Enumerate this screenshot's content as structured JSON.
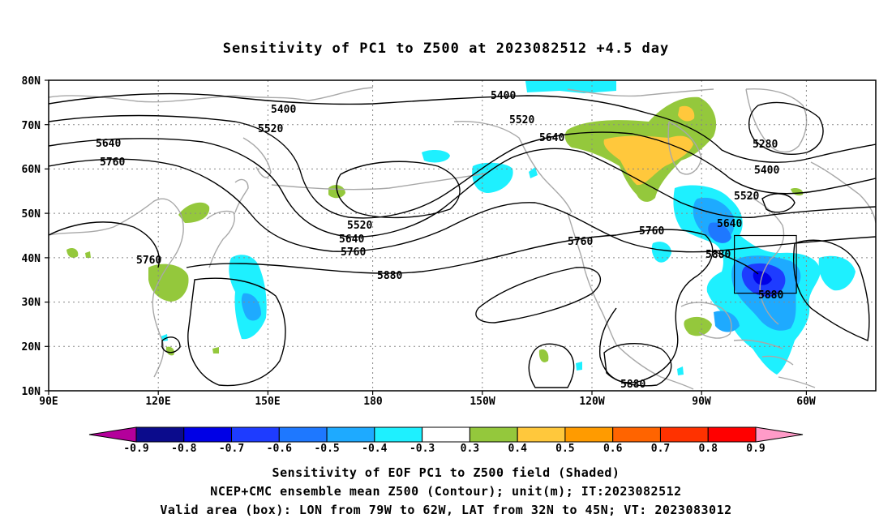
{
  "title": "Sensitivity of PC1 to Z500 at 2023082512 +4.5 day",
  "lat_ticks": [
    "80N",
    "70N",
    "60N",
    "50N",
    "40N",
    "30N",
    "20N",
    "10N"
  ],
  "lon_ticks": [
    "90E",
    "120E",
    "150E",
    "180",
    "150W",
    "120W",
    "90W",
    "60W"
  ],
  "contour_labels": [
    {
      "text": "5400",
      "key": "c1"
    },
    {
      "text": "5400",
      "key": "c2"
    },
    {
      "text": "5520",
      "key": "c3"
    },
    {
      "text": "5520",
      "key": "c4"
    },
    {
      "text": "5640",
      "key": "c5"
    },
    {
      "text": "5640",
      "key": "c6"
    },
    {
      "text": "5760",
      "key": "c7"
    },
    {
      "text": "5280",
      "key": "c8"
    },
    {
      "text": "5400",
      "key": "c9"
    },
    {
      "text": "5520",
      "key": "c10"
    },
    {
      "text": "5520",
      "key": "c11"
    },
    {
      "text": "5640",
      "key": "c12"
    },
    {
      "text": "5760",
      "key": "c13"
    },
    {
      "text": "5760",
      "key": "c14"
    },
    {
      "text": "5640",
      "key": "c15"
    },
    {
      "text": "5760",
      "key": "c16"
    },
    {
      "text": "5880",
      "key": "c17"
    },
    {
      "text": "5760",
      "key": "c18"
    },
    {
      "text": "5880",
      "key": "c19"
    },
    {
      "text": "5880",
      "key": "c20"
    },
    {
      "text": "5880",
      "key": "c21"
    }
  ],
  "colorbar": {
    "labels": [
      "-0.9",
      "-0.8",
      "-0.7",
      "-0.6",
      "-0.5",
      "-0.4",
      "-0.3",
      "0.3",
      "0.4",
      "0.5",
      "0.6",
      "0.7",
      "0.8",
      "0.9"
    ],
    "colors": [
      "#0b0b8c",
      "#0000e6",
      "#1e3cff",
      "#1e78ff",
      "#1eaaff",
      "#1ef0ff",
      "#ffffff",
      "#94c83c",
      "#ffc83c",
      "#ff9b00",
      "#ff6400",
      "#ff3200",
      "#ff0000"
    ],
    "low_arrow_color": "#b4009b",
    "high_arrow_color": "#ff9bc8"
  },
  "captions": {
    "line1": "Sensitivity of EOF PC1 to Z500 field (Shaded)",
    "line2": "NCEP+CMC ensemble mean Z500 (Contour); unit(m); IT:2023082512",
    "line3": "Valid area (box): LON from 79W to 62W, LAT from 32N to 45N; VT: 2023083012"
  }
}
